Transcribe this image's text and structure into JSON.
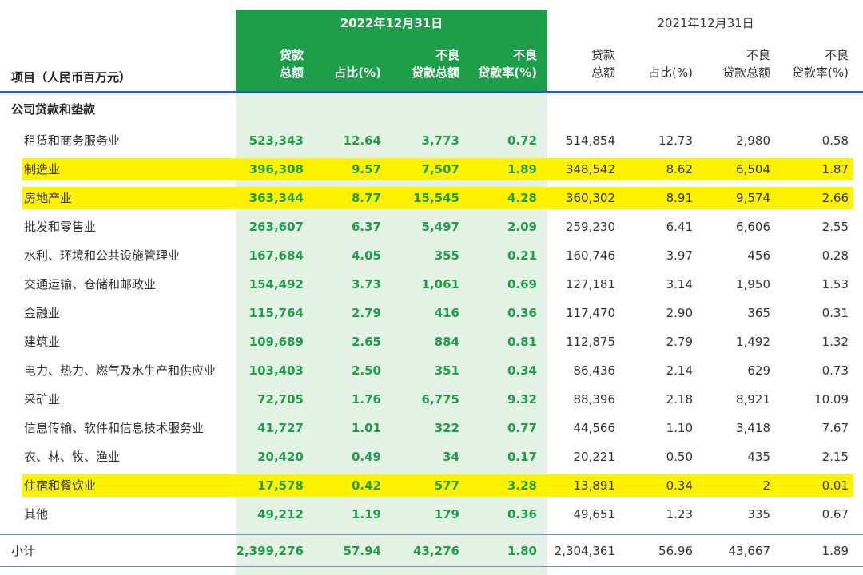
{
  "header": {
    "col_label": "项目（人民币百万元）",
    "year_2022": "2022年12月31日",
    "year_2021": "2021年12月31日",
    "loan_total_l1": "贷款",
    "loan_total_l2": "总额",
    "share": "占比(%)",
    "npl_total_l1": "不良",
    "npl_total_l2": "贷款总额",
    "npl_ratio_l1": "不良",
    "npl_ratio_l2": "贷款率(%)"
  },
  "section_title": "公司贷款和垫款",
  "rows": [
    {
      "label": "租赁和商务服务业",
      "a": "523,343",
      "b": "12.64",
      "c": "3,773",
      "d": "0.72",
      "e": "514,854",
      "f": "12.73",
      "g": "2,980",
      "h": "0.58",
      "highlight": false
    },
    {
      "label": "制造业",
      "a": "396,308",
      "b": "9.57",
      "c": "7,507",
      "d": "1.89",
      "e": "348,542",
      "f": "8.62",
      "g": "6,504",
      "h": "1.87",
      "highlight": true
    },
    {
      "label": "房地产业",
      "a": "363,344",
      "b": "8.77",
      "c": "15,545",
      "d": "4.28",
      "e": "360,302",
      "f": "8.91",
      "g": "9,574",
      "h": "2.66",
      "highlight": true
    },
    {
      "label": "批发和零售业",
      "a": "263,607",
      "b": "6.37",
      "c": "5,497",
      "d": "2.09",
      "e": "259,230",
      "f": "6.41",
      "g": "6,606",
      "h": "2.55",
      "highlight": false
    },
    {
      "label": "水利、环境和公共设施管理业",
      "a": "167,684",
      "b": "4.05",
      "c": "355",
      "d": "0.21",
      "e": "160,746",
      "f": "3.97",
      "g": "456",
      "h": "0.28",
      "highlight": false
    },
    {
      "label": "交通运输、仓储和邮政业",
      "a": "154,492",
      "b": "3.73",
      "c": "1,061",
      "d": "0.69",
      "e": "127,181",
      "f": "3.14",
      "g": "1,950",
      "h": "1.53",
      "highlight": false
    },
    {
      "label": "金融业",
      "a": "115,764",
      "b": "2.79",
      "c": "416",
      "d": "0.36",
      "e": "117,470",
      "f": "2.90",
      "g": "365",
      "h": "0.31",
      "highlight": false
    },
    {
      "label": "建筑业",
      "a": "109,689",
      "b": "2.65",
      "c": "884",
      "d": "0.81",
      "e": "112,875",
      "f": "2.79",
      "g": "1,492",
      "h": "1.32",
      "highlight": false
    },
    {
      "label": "电力、热力、燃气及水生产和供应业",
      "a": "103,403",
      "b": "2.50",
      "c": "351",
      "d": "0.34",
      "e": "86,436",
      "f": "2.14",
      "g": "629",
      "h": "0.73",
      "highlight": false
    },
    {
      "label": "采矿业",
      "a": "72,705",
      "b": "1.76",
      "c": "6,775",
      "d": "9.32",
      "e": "88,396",
      "f": "2.18",
      "g": "8,921",
      "h": "10.09",
      "highlight": false
    },
    {
      "label": "信息传输、软件和信息技术服务业",
      "a": "41,727",
      "b": "1.01",
      "c": "322",
      "d": "0.77",
      "e": "44,566",
      "f": "1.10",
      "g": "3,418",
      "h": "7.67",
      "highlight": false
    },
    {
      "label": "农、林、牧、渔业",
      "a": "20,420",
      "b": "0.49",
      "c": "34",
      "d": "0.17",
      "e": "20,221",
      "f": "0.50",
      "g": "435",
      "h": "2.15",
      "highlight": false
    },
    {
      "label": "住宿和餐饮业",
      "a": "17,578",
      "b": "0.42",
      "c": "577",
      "d": "3.28",
      "e": "13,891",
      "f": "0.34",
      "g": "2",
      "h": "0.01",
      "highlight": true
    },
    {
      "label": "其他",
      "a": "49,212",
      "b": "1.19",
      "c": "179",
      "d": "0.36",
      "e": "49,651",
      "f": "1.23",
      "g": "335",
      "h": "0.67",
      "highlight": false
    }
  ],
  "total": {
    "label": "小计",
    "a": "2,399,276",
    "b": "57.94",
    "c": "43,276",
    "d": "1.80",
    "e": "2,304,361",
    "f": "56.96",
    "g": "43,667",
    "h": "1.89"
  },
  "colors": {
    "green_header": "#1f9e4a",
    "green_band": "#e4f2e6",
    "highlight": "#fff200",
    "rule": "#2a5fa8"
  }
}
